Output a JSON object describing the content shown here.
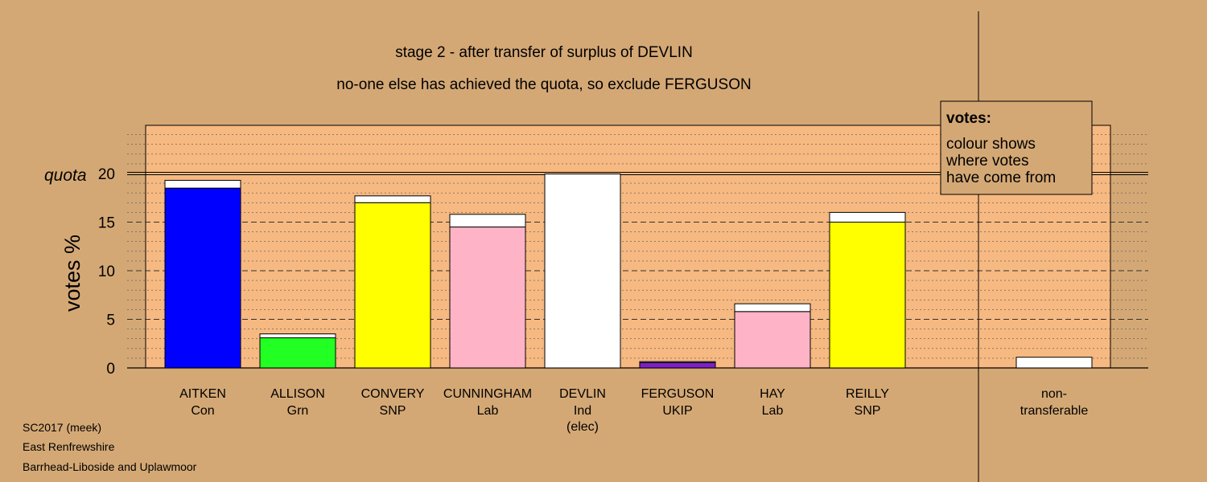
{
  "colors": {
    "background": "#d4a875",
    "plot_area": "#f6b981",
    "Con": "#0000ff",
    "Grn": "#22ff22",
    "SNP": "#ffff00",
    "Lab": "#ffb3c6",
    "Ind": "#ffffff",
    "UKIP": "#7d1fc8",
    "transfer": "#ffffff",
    "legend_box": "#d4a875"
  },
  "chart_data": {
    "type": "bar",
    "title": "stage 2 - after transfer of surplus of DEVLIN",
    "subtitle": "no-one else has achieved the quota, so exclude FERGUSON",
    "ylabel": "votes %",
    "quota_label": "quota",
    "quota": 20,
    "ylim": [
      0,
      25
    ],
    "yticks": [
      0,
      5,
      10,
      15,
      20
    ],
    "grid": true,
    "legend_position": "top-right",
    "categories": [
      {
        "name": "AITKEN",
        "party": "Con",
        "extra": "",
        "base": 18.5,
        "transfer": 0.8
      },
      {
        "name": "ALLISON",
        "party": "Grn",
        "extra": "",
        "base": 3.1,
        "transfer": 0.4
      },
      {
        "name": "CONVERY",
        "party": "SNP",
        "extra": "",
        "base": 17.0,
        "transfer": 0.7
      },
      {
        "name": "CUNNINGHAM",
        "party": "Lab",
        "extra": "",
        "base": 14.5,
        "transfer": 1.3
      },
      {
        "name": "DEVLIN",
        "party": "Ind",
        "extra": "(elec)",
        "base": 19.95,
        "transfer": 0
      },
      {
        "name": "FERGUSON",
        "party": "UKIP",
        "extra": "",
        "base": 0.55,
        "transfer": 0.1
      },
      {
        "name": "HAY",
        "party": "Lab",
        "extra": "",
        "base": 5.8,
        "transfer": 0.8
      },
      {
        "name": "REILLY",
        "party": "SNP",
        "extra": "",
        "base": 15.0,
        "transfer": 1.0
      }
    ],
    "nontransferable": {
      "line1": "non-",
      "line2": "transferable",
      "value": 1.1
    }
  },
  "legend": {
    "title": "votes:",
    "lines": [
      "colour shows",
      "where votes",
      "have come from"
    ]
  },
  "footer": [
    "SC2017 (meek)",
    "East Renfrewshire",
    "Barrhead-Liboside and Uplawmoor"
  ]
}
